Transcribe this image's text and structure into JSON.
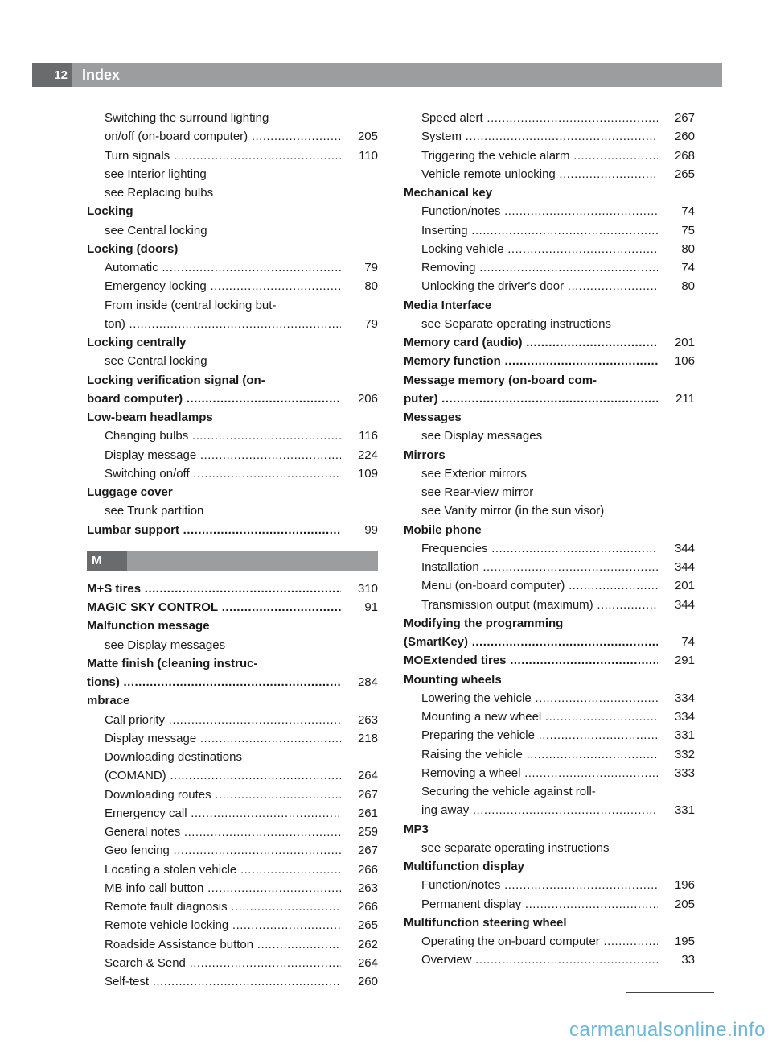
{
  "header": {
    "page_number": "12",
    "title": "Index"
  },
  "section_letter": "M",
  "watermark": "carmanualsonline.info",
  "col1": [
    {
      "text": "Switching the surround lighting",
      "page": "",
      "bold": false,
      "sub": true,
      "dots": false
    },
    {
      "text": "on/off (on-board computer)",
      "page": "205",
      "bold": false,
      "sub": true,
      "dots": true
    },
    {
      "text": "Turn signals",
      "page": "110",
      "bold": false,
      "sub": true,
      "dots": true
    },
    {
      "text": "see Interior lighting",
      "page": "",
      "bold": false,
      "sub": true,
      "dots": false
    },
    {
      "text": "see Replacing bulbs",
      "page": "",
      "bold": false,
      "sub": true,
      "dots": false
    },
    {
      "text": "Locking",
      "page": "",
      "bold": true,
      "sub": false,
      "dots": false
    },
    {
      "text": "see Central locking",
      "page": "",
      "bold": false,
      "sub": true,
      "dots": false
    },
    {
      "text": "Locking (doors)",
      "page": "",
      "bold": true,
      "sub": false,
      "dots": false
    },
    {
      "text": "Automatic",
      "page": "79",
      "bold": false,
      "sub": true,
      "dots": true
    },
    {
      "text": "Emergency locking",
      "page": "80",
      "bold": false,
      "sub": true,
      "dots": true
    },
    {
      "text": "From inside (central locking but-",
      "page": "",
      "bold": false,
      "sub": true,
      "dots": false
    },
    {
      "text": "ton)",
      "page": "79",
      "bold": false,
      "sub": true,
      "dots": true
    },
    {
      "text": "Locking centrally",
      "page": "",
      "bold": true,
      "sub": false,
      "dots": false
    },
    {
      "text": "see Central locking",
      "page": "",
      "bold": false,
      "sub": true,
      "dots": false
    },
    {
      "text": "Locking verification signal (on-",
      "page": "",
      "bold": true,
      "sub": false,
      "dots": false
    },
    {
      "text": "board computer)",
      "page": "206",
      "bold": true,
      "sub": false,
      "dots": true
    },
    {
      "text": "Low-beam headlamps",
      "page": "",
      "bold": true,
      "sub": false,
      "dots": false
    },
    {
      "text": "Changing bulbs",
      "page": "116",
      "bold": false,
      "sub": true,
      "dots": true
    },
    {
      "text": "Display message",
      "page": "224",
      "bold": false,
      "sub": true,
      "dots": true
    },
    {
      "text": "Switching on/off",
      "page": "109",
      "bold": false,
      "sub": true,
      "dots": true
    },
    {
      "text": "Luggage cover",
      "page": "",
      "bold": true,
      "sub": false,
      "dots": false
    },
    {
      "text": "see Trunk partition",
      "page": "",
      "bold": false,
      "sub": true,
      "dots": false
    },
    {
      "text": "Lumbar support",
      "page": "99",
      "bold": true,
      "sub": false,
      "dots": true
    }
  ],
  "col1_after_letter": [
    {
      "text": "M+S tires",
      "page": "310",
      "bold": true,
      "sub": false,
      "dots": true
    },
    {
      "text": "MAGIC SKY CONTROL",
      "page": "91",
      "bold": true,
      "sub": false,
      "dots": true
    },
    {
      "text": "Malfunction message",
      "page": "",
      "bold": true,
      "sub": false,
      "dots": false
    },
    {
      "text": "see Display messages",
      "page": "",
      "bold": false,
      "sub": true,
      "dots": false
    },
    {
      "text": "Matte finish (cleaning instruc-",
      "page": "",
      "bold": true,
      "sub": false,
      "dots": false
    },
    {
      "text": "tions)",
      "page": "284",
      "bold": true,
      "sub": false,
      "dots": true
    },
    {
      "text": "mbrace",
      "page": "",
      "bold": true,
      "sub": false,
      "dots": false
    },
    {
      "text": "Call priority",
      "page": "263",
      "bold": false,
      "sub": true,
      "dots": true
    },
    {
      "text": "Display message",
      "page": "218",
      "bold": false,
      "sub": true,
      "dots": true
    },
    {
      "text": "Downloading destinations",
      "page": "",
      "bold": false,
      "sub": true,
      "dots": false
    },
    {
      "text": "(COMAND)",
      "page": "264",
      "bold": false,
      "sub": true,
      "dots": true
    },
    {
      "text": "Downloading routes",
      "page": "267",
      "bold": false,
      "sub": true,
      "dots": true
    },
    {
      "text": "Emergency call",
      "page": "261",
      "bold": false,
      "sub": true,
      "dots": true
    },
    {
      "text": "General notes",
      "page": "259",
      "bold": false,
      "sub": true,
      "dots": true
    },
    {
      "text": "Geo fencing",
      "page": "267",
      "bold": false,
      "sub": true,
      "dots": true
    },
    {
      "text": "Locating a stolen vehicle",
      "page": "266",
      "bold": false,
      "sub": true,
      "dots": true
    },
    {
      "text": "MB info call button",
      "page": "263",
      "bold": false,
      "sub": true,
      "dots": true
    },
    {
      "text": "Remote fault diagnosis",
      "page": "266",
      "bold": false,
      "sub": true,
      "dots": true
    },
    {
      "text": "Remote vehicle locking",
      "page": "265",
      "bold": false,
      "sub": true,
      "dots": true
    },
    {
      "text": "Roadside Assistance button",
      "page": "262",
      "bold": false,
      "sub": true,
      "dots": true
    },
    {
      "text": "Search & Send",
      "page": "264",
      "bold": false,
      "sub": true,
      "dots": true
    },
    {
      "text": "Self-test",
      "page": "260",
      "bold": false,
      "sub": true,
      "dots": true
    }
  ],
  "col2": [
    {
      "text": "Speed alert",
      "page": "267",
      "bold": false,
      "sub": true,
      "dots": true
    },
    {
      "text": "System",
      "page": "260",
      "bold": false,
      "sub": true,
      "dots": true
    },
    {
      "text": "Triggering the vehicle alarm",
      "page": "268",
      "bold": false,
      "sub": true,
      "dots": true
    },
    {
      "text": "Vehicle remote unlocking",
      "page": "265",
      "bold": false,
      "sub": true,
      "dots": true
    },
    {
      "text": "Mechanical key",
      "page": "",
      "bold": true,
      "sub": false,
      "dots": false
    },
    {
      "text": "Function/notes",
      "page": "74",
      "bold": false,
      "sub": true,
      "dots": true
    },
    {
      "text": "Inserting",
      "page": "75",
      "bold": false,
      "sub": true,
      "dots": true
    },
    {
      "text": "Locking vehicle",
      "page": "80",
      "bold": false,
      "sub": true,
      "dots": true
    },
    {
      "text": "Removing",
      "page": "74",
      "bold": false,
      "sub": true,
      "dots": true
    },
    {
      "text": "Unlocking the driver's door",
      "page": "80",
      "bold": false,
      "sub": true,
      "dots": true
    },
    {
      "text": "Media Interface",
      "page": "",
      "bold": true,
      "sub": false,
      "dots": false
    },
    {
      "text": "see Separate operating instructions",
      "page": "",
      "bold": false,
      "sub": true,
      "dots": false
    },
    {
      "text": "Memory card (audio)",
      "page": "201",
      "bold": true,
      "sub": false,
      "dots": true
    },
    {
      "text": "Memory function",
      "page": "106",
      "bold": true,
      "sub": false,
      "dots": true
    },
    {
      "text": "Message memory (on-board com-",
      "page": "",
      "bold": true,
      "sub": false,
      "dots": false
    },
    {
      "text": "puter)",
      "page": "211",
      "bold": true,
      "sub": false,
      "dots": true
    },
    {
      "text": "Messages",
      "page": "",
      "bold": true,
      "sub": false,
      "dots": false
    },
    {
      "text": "see Display messages",
      "page": "",
      "bold": false,
      "sub": true,
      "dots": false
    },
    {
      "text": "Mirrors",
      "page": "",
      "bold": true,
      "sub": false,
      "dots": false
    },
    {
      "text": "see Exterior mirrors",
      "page": "",
      "bold": false,
      "sub": true,
      "dots": false
    },
    {
      "text": "see Rear-view mirror",
      "page": "",
      "bold": false,
      "sub": true,
      "dots": false
    },
    {
      "text": "see Vanity mirror (in the sun visor)",
      "page": "",
      "bold": false,
      "sub": true,
      "dots": false
    },
    {
      "text": "Mobile phone",
      "page": "",
      "bold": true,
      "sub": false,
      "dots": false
    },
    {
      "text": "Frequencies",
      "page": "344",
      "bold": false,
      "sub": true,
      "dots": true
    },
    {
      "text": "Installation",
      "page": "344",
      "bold": false,
      "sub": true,
      "dots": true
    },
    {
      "text": "Menu (on-board computer)",
      "page": "201",
      "bold": false,
      "sub": true,
      "dots": true
    },
    {
      "text": "Transmission output (maximum)",
      "page": "344",
      "bold": false,
      "sub": true,
      "dots": true
    },
    {
      "text": "Modifying the programming",
      "page": "",
      "bold": true,
      "sub": false,
      "dots": false
    },
    {
      "text": "(SmartKey)",
      "page": "74",
      "bold": true,
      "sub": false,
      "dots": true
    },
    {
      "text": "MOExtended tires",
      "page": "291",
      "bold": true,
      "sub": false,
      "dots": true
    },
    {
      "text": "Mounting wheels",
      "page": "",
      "bold": true,
      "sub": false,
      "dots": false
    },
    {
      "text": "Lowering the vehicle",
      "page": "334",
      "bold": false,
      "sub": true,
      "dots": true
    },
    {
      "text": "Mounting a new wheel",
      "page": "334",
      "bold": false,
      "sub": true,
      "dots": true
    },
    {
      "text": "Preparing the vehicle",
      "page": "331",
      "bold": false,
      "sub": true,
      "dots": true
    },
    {
      "text": "Raising the vehicle",
      "page": "332",
      "bold": false,
      "sub": true,
      "dots": true
    },
    {
      "text": "Removing a wheel",
      "page": "333",
      "bold": false,
      "sub": true,
      "dots": true
    },
    {
      "text": "Securing the vehicle against roll-",
      "page": "",
      "bold": false,
      "sub": true,
      "dots": false
    },
    {
      "text": "ing away",
      "page": "331",
      "bold": false,
      "sub": true,
      "dots": true
    },
    {
      "text": "MP3",
      "page": "",
      "bold": true,
      "sub": false,
      "dots": false
    },
    {
      "text": "see separate operating instructions",
      "page": "",
      "bold": false,
      "sub": true,
      "dots": false
    },
    {
      "text": "Multifunction display",
      "page": "",
      "bold": true,
      "sub": false,
      "dots": false
    },
    {
      "text": "Function/notes",
      "page": "196",
      "bold": false,
      "sub": true,
      "dots": true
    },
    {
      "text": "Permanent display",
      "page": "205",
      "bold": false,
      "sub": true,
      "dots": true
    },
    {
      "text": "Multifunction steering wheel",
      "page": "",
      "bold": true,
      "sub": false,
      "dots": false
    },
    {
      "text": "Operating the on-board computer",
      "page": "195",
      "bold": false,
      "sub": true,
      "dots": true
    },
    {
      "text": "Overview",
      "page": "33",
      "bold": false,
      "sub": true,
      "dots": true
    }
  ]
}
